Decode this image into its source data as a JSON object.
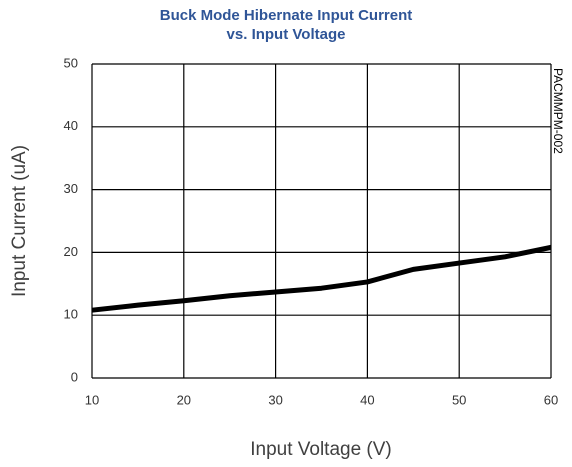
{
  "chart_data": {
    "type": "line",
    "title": "Buck Mode Hibernate Input Current",
    "subtitle": "vs. Input Voltage",
    "x_label": "Input Voltage (V)",
    "y_label": "Input Current (uA)",
    "annotation": "PACMMPM-002",
    "x": [
      10,
      15,
      20,
      25,
      30,
      35,
      40,
      45,
      50,
      55,
      60
    ],
    "series": [
      {
        "name": "Input Current",
        "color": "#000000",
        "values": [
          10.8,
          11.6,
          12.3,
          13.1,
          13.7,
          14.3,
          15.3,
          17.3,
          18.3,
          19.3,
          20.8
        ]
      }
    ],
    "xlim": [
      10,
      60
    ],
    "xticks": [
      10,
      20,
      30,
      40,
      50,
      60
    ],
    "ylim": [
      0,
      50
    ],
    "yticks": [
      0,
      10,
      20,
      30,
      40,
      50
    ],
    "grid": true
  }
}
